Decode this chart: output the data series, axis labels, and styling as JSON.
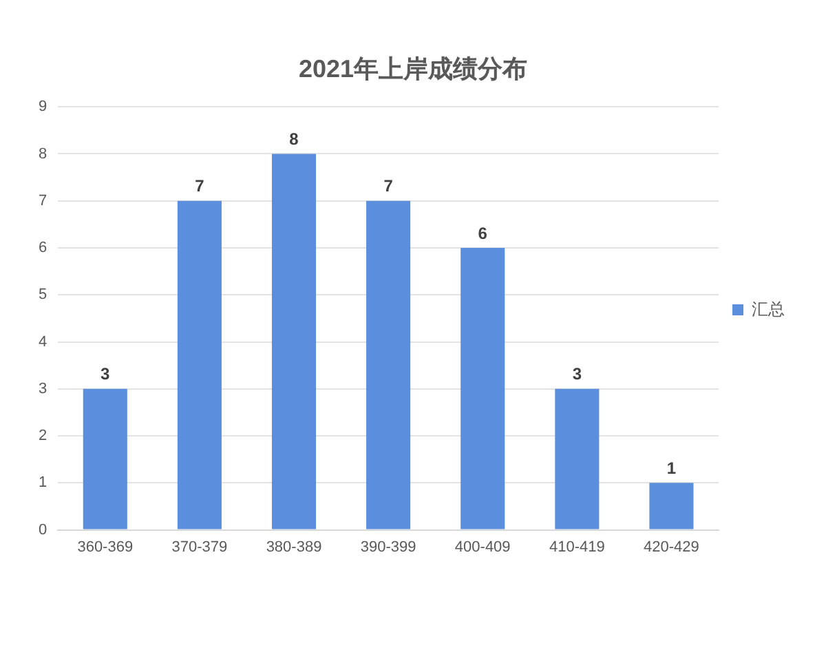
{
  "chart_data": {
    "type": "bar",
    "title": "2021年上岸成绩分布",
    "categories": [
      "360-369",
      "370-379",
      "380-389",
      "390-399",
      "400-409",
      "410-419",
      "420-429"
    ],
    "series": [
      {
        "name": "汇总",
        "color": "#5b8fde",
        "values": [
          3,
          7,
          8,
          7,
          6,
          3,
          1
        ]
      }
    ],
    "ylim": [
      0,
      9
    ],
    "yticks": [
      0,
      1,
      2,
      3,
      4,
      5,
      6,
      7,
      8,
      9
    ],
    "grid": "y",
    "legend": "right",
    "data_labels": true
  }
}
